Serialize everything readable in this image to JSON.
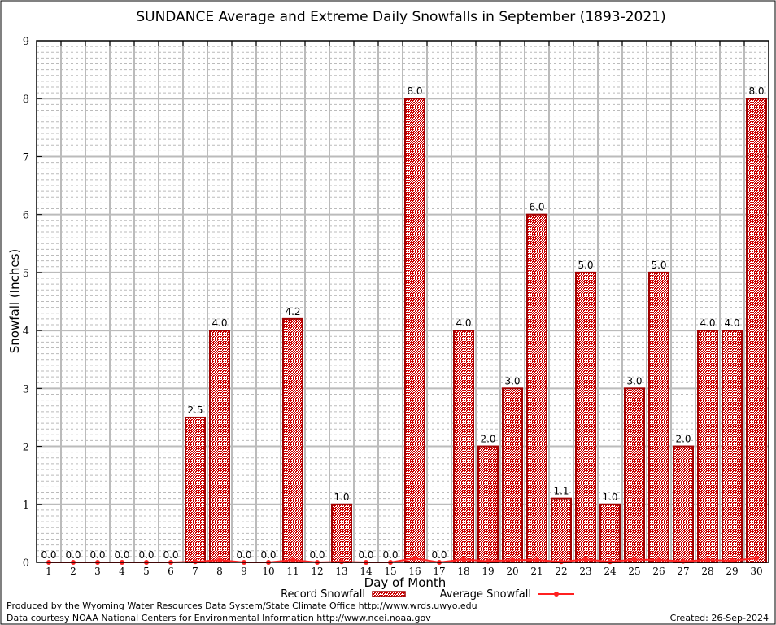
{
  "chart_data": {
    "type": "bar",
    "title": "SUNDANCE Average and Extreme Daily Snowfalls in September (1893-2021)",
    "xlabel": "Day of Month",
    "ylabel": "Snowfall (Inches)",
    "ylim": [
      0,
      9
    ],
    "yticks": [
      "0",
      "1",
      "2",
      "3",
      "4",
      "5",
      "6",
      "7",
      "8",
      "9"
    ],
    "grid": true,
    "legend_placement": "bottom",
    "categories": [
      "1",
      "2",
      "3",
      "4",
      "5",
      "6",
      "7",
      "8",
      "9",
      "10",
      "11",
      "12",
      "13",
      "14",
      "15",
      "16",
      "17",
      "18",
      "19",
      "20",
      "21",
      "22",
      "23",
      "24",
      "25",
      "26",
      "27",
      "28",
      "29",
      "30"
    ],
    "series": [
      {
        "name": "Record Snowfall",
        "type": "bar",
        "color": "#cc0000",
        "values": [
          0,
          0,
          0,
          0,
          0,
          0,
          2.5,
          4.0,
          0,
          0,
          4.2,
          0,
          1.0,
          0,
          0,
          8.0,
          0,
          4.0,
          2.0,
          3.0,
          6.0,
          1.1,
          5.0,
          1.0,
          3.0,
          5.0,
          2.0,
          4.0,
          4.0,
          8.0
        ],
        "labels": [
          "0.0",
          "0.0",
          "0.0",
          "0.0",
          "0.0",
          "0.0",
          "2.5",
          "4.0",
          "0.0",
          "0.0",
          "4.2",
          "0.0",
          "1.0",
          "0.0",
          "0.0",
          "8.0",
          "0.0",
          "4.0",
          "2.0",
          "3.0",
          "6.0",
          "1.1",
          "5.0",
          "1.0",
          "3.0",
          "5.0",
          "2.0",
          "4.0",
          "4.0",
          "8.0"
        ]
      },
      {
        "name": "Average Snowfall",
        "type": "line",
        "color": "#ff2020",
        "values": [
          0,
          0,
          0,
          0,
          0,
          0,
          0.01,
          0.04,
          0,
          0,
          0.04,
          0,
          0.01,
          0,
          0,
          0.07,
          0,
          0.05,
          0.02,
          0.04,
          0.04,
          0.01,
          0.05,
          0.01,
          0.05,
          0.04,
          0.02,
          0.04,
          0.03,
          0.07
        ]
      }
    ]
  },
  "footer": {
    "produced": "Produced by the Wyoming Water Resources Data System/State Climate Office http://www.wrds.uwyo.edu",
    "courtesy": "Data courtesy NOAA National Centers for Environmental Information http://www.ncei.noaa.gov",
    "created": "Created: 26-Sep-2024"
  }
}
